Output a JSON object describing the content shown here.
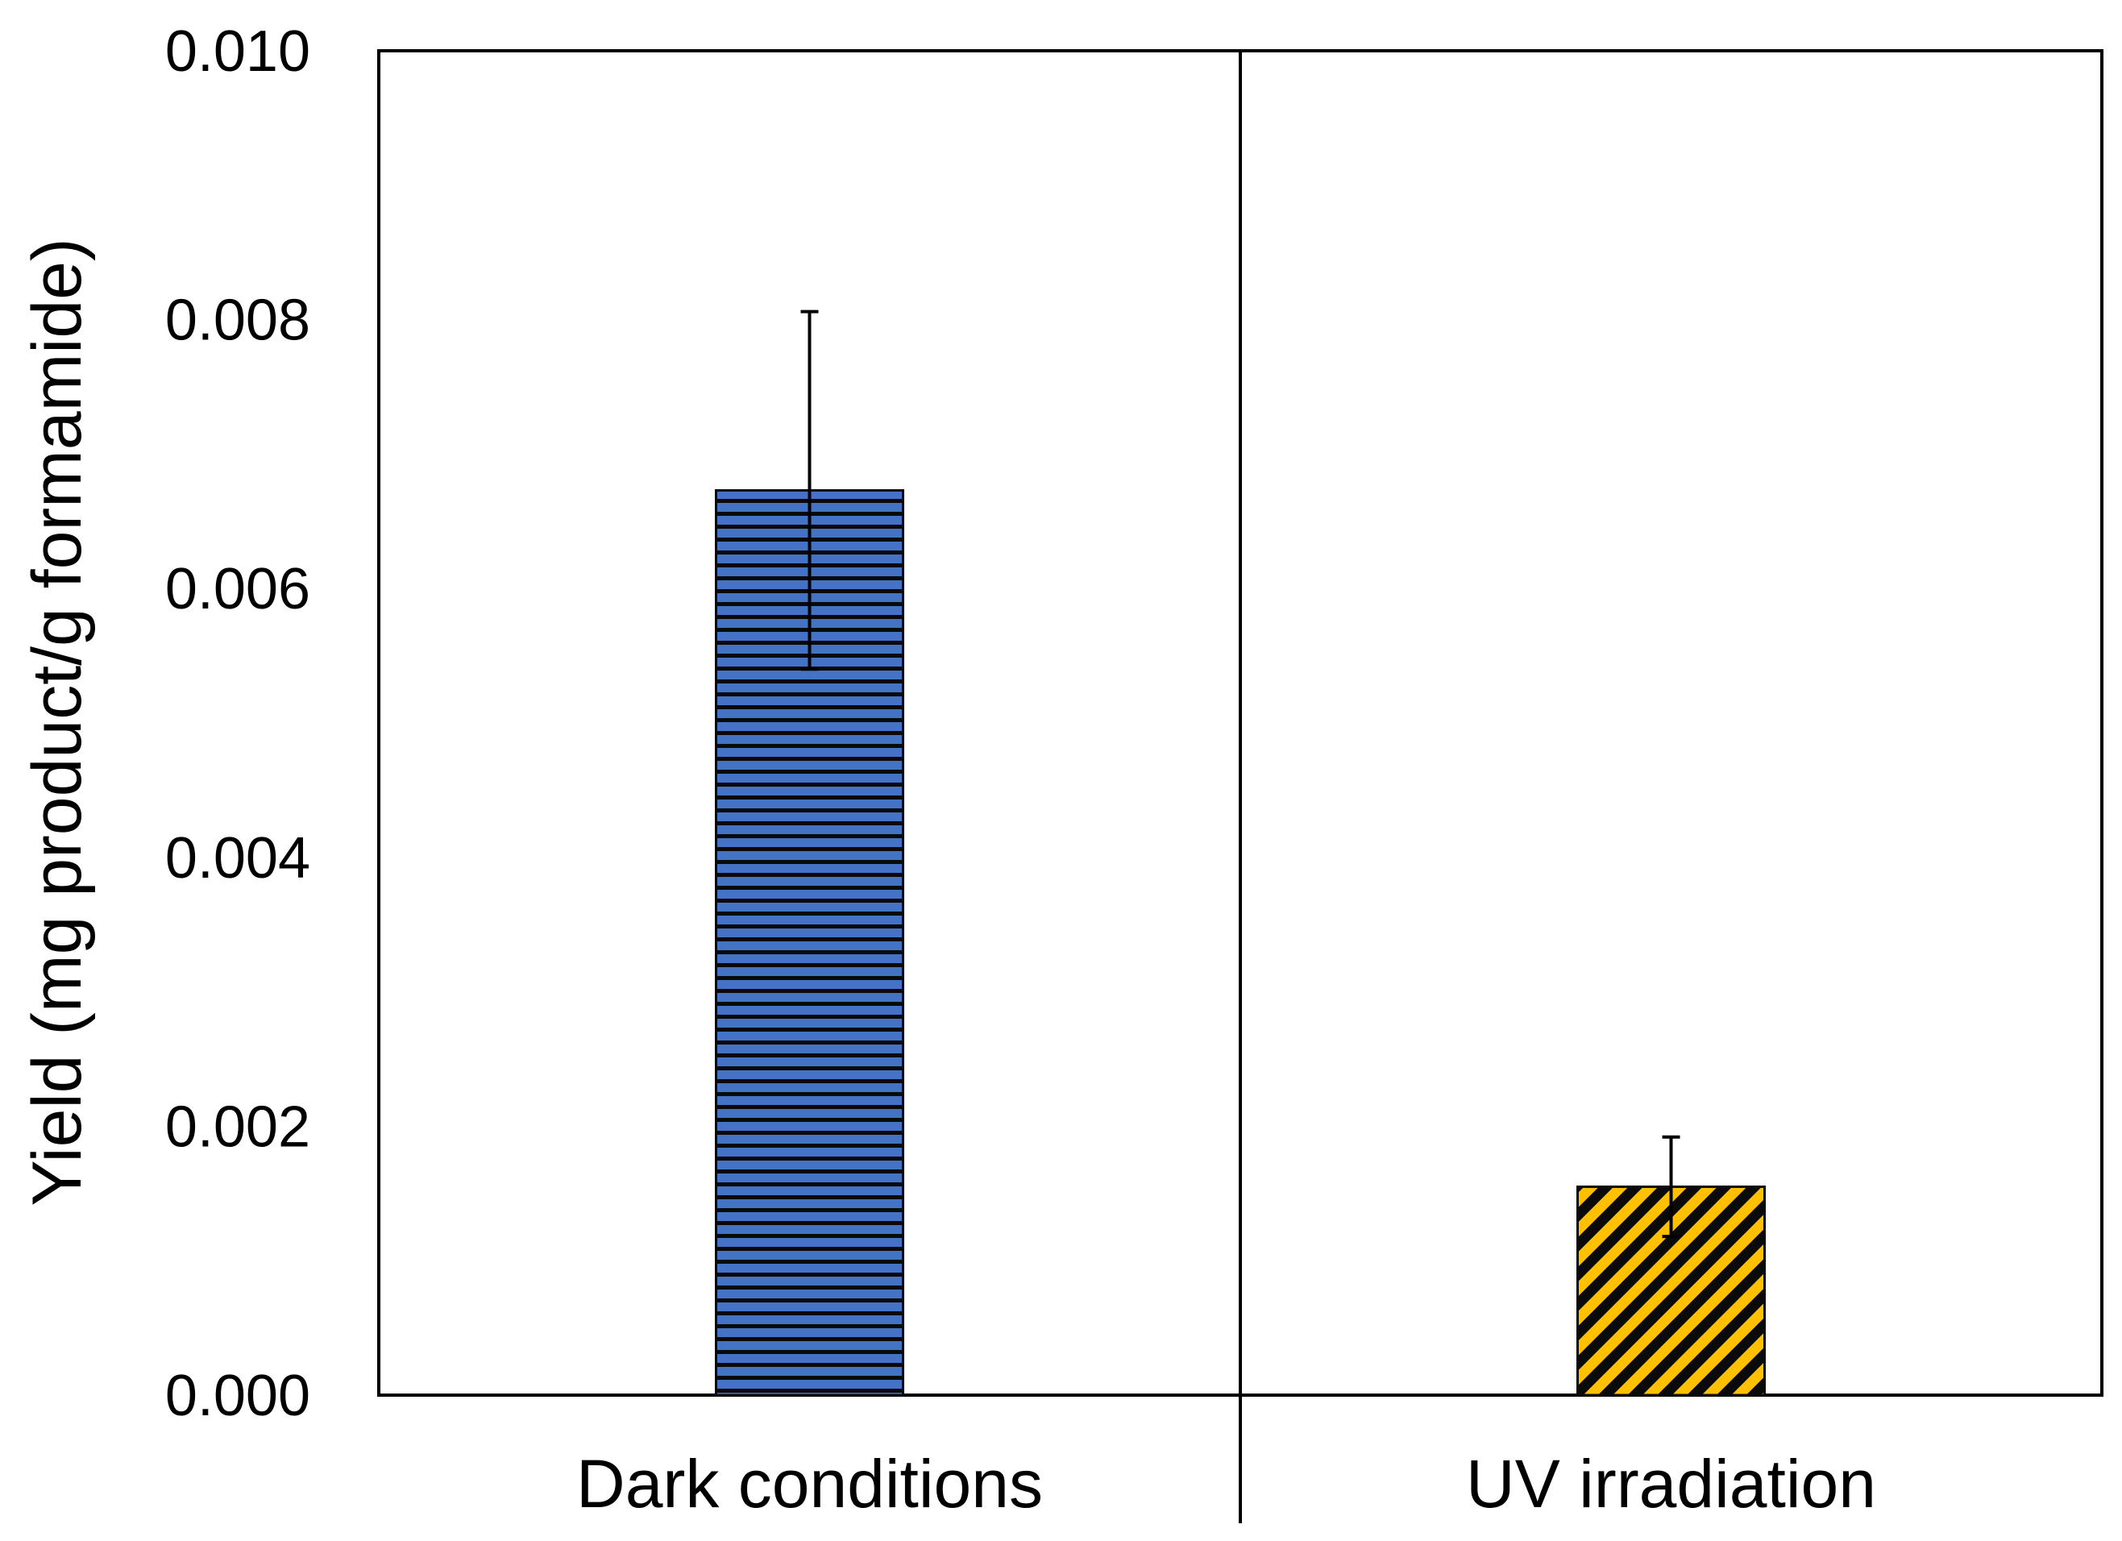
{
  "chart_data": {
    "type": "bar",
    "title": "",
    "xlabel": "",
    "ylabel": "Yield (mg product/g formamide)",
    "categories": [
      "Dark conditions",
      "UV irradiation"
    ],
    "values": [
      0.00673,
      0.00155
    ],
    "errors": [
      0.00133,
      0.00037
    ],
    "ylim": [
      0,
      0.01
    ],
    "yticks": [
      "0.000",
      "0.002",
      "0.004",
      "0.006",
      "0.008",
      "0.010"
    ],
    "ytick_values": [
      0,
      0.002,
      0.004,
      0.006,
      0.008,
      0.01
    ],
    "grid": false,
    "legend": "none",
    "bar_colors": [
      "#4472C4",
      "#FFC000"
    ],
    "bar_patterns": [
      "horizontal-stripes",
      "diagonal-stripes"
    ]
  }
}
